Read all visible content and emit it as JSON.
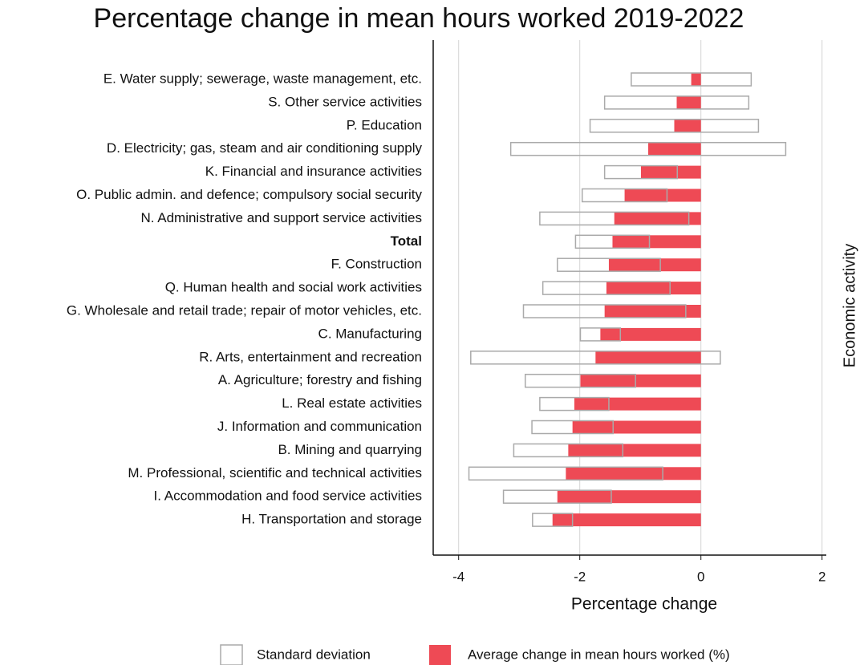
{
  "chart_data": {
    "type": "error_bar",
    "title": "Percentage change in mean hours worked 2019-2022",
    "x_label": "Percentage change",
    "y_label": "Economic activity",
    "categories": [
      "E. Water supply; sewerage, waste management, etc.",
      "S. Other service activities",
      "P. Education",
      "D. Electricity; gas, steam and air conditioning supply",
      "K. Financial and insurance activities",
      "O. Public admin. and defence; compulsory social security",
      "N. Administrative and support service activities",
      "Total",
      "F. Construction",
      "Q. Human health and social work activities",
      "G. Wholesale and retail trade; repair of motor vehicles, etc.",
      "C. Manufacturing",
      "R. Arts, entertainment and recreation",
      "A. Agriculture; forestry and fishing",
      "L. Real estate activities",
      "J. Information and communication",
      "B. Mining and quarrying",
      "M. Professional, scientific and technical activities",
      "I. Accommodation and food service activities",
      "H. Transportation and storage"
    ],
    "bold_category_index": 7,
    "series": [
      {
        "name": "Standard deviation",
        "color": "#ffffff",
        "edge_color": "#aaaaaa",
        "values": [
          0.99,
          1.19,
          1.39,
          2.27,
          0.6,
          0.7,
          1.23,
          0.61,
          0.85,
          1.05,
          1.34,
          0.33,
          2.06,
          0.91,
          0.57,
          0.67,
          0.9,
          1.6,
          0.89,
          0.33
        ]
      },
      {
        "name": "Average change in mean hours worked (%)",
        "color": "#ee4a55",
        "values": [
          -0.16,
          -0.4,
          -0.44,
          -0.87,
          -0.99,
          -1.26,
          -1.43,
          -1.46,
          -1.52,
          -1.56,
          -1.59,
          -1.66,
          -1.74,
          -1.99,
          -2.09,
          -2.12,
          -2.19,
          -2.23,
          -2.37,
          -2.45
        ]
      }
    ],
    "xlim": [
      -4.42,
      2.07
    ],
    "xticks": [
      -4,
      -2,
      0,
      2
    ],
    "grid": true
  }
}
